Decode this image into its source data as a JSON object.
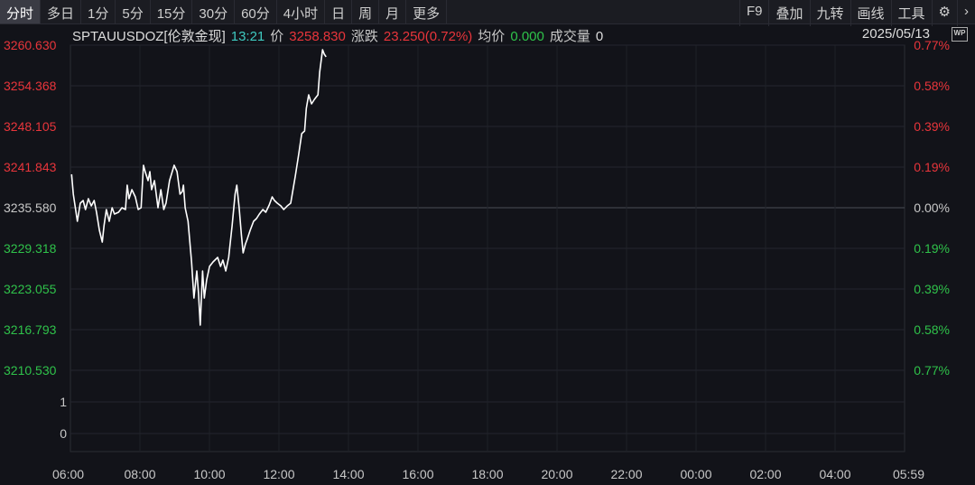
{
  "toolbar": {
    "tabs": [
      "分时",
      "多日",
      "1分",
      "5分",
      "15分",
      "30分",
      "60分",
      "4小时",
      "日",
      "周",
      "月",
      "更多"
    ],
    "active": 0,
    "right": [
      "F9",
      "叠加",
      "九转",
      "画线",
      "工具"
    ],
    "settings_icon": "gear-icon",
    "more_icon": "chevron-right-icon"
  },
  "info": {
    "symbol": "SPTAUUSDOZ[伦敦金现]",
    "time": "13:21",
    "price_label": "价",
    "price": "3258.830",
    "change_label": "涨跌",
    "change": "23.250(0.72%)",
    "avg_label": "均价",
    "avg": "0.000",
    "volume_label": "成交量",
    "volume": "0",
    "date": "2025/05/13",
    "wp_label": "WP"
  },
  "colors": {
    "up": "#e8353b",
    "down": "#2fc24a",
    "time": "#3fc9c0",
    "line": "#ffffff"
  },
  "chart_data": {
    "type": "line",
    "price_ticks": [
      "3260.630",
      "3254.368",
      "3248.105",
      "3241.843",
      "3235.580",
      "3229.318",
      "3223.055",
      "3216.793",
      "3210.530"
    ],
    "pct_ticks": [
      "0.77%",
      "0.58%",
      "0.39%",
      "0.19%",
      "0.00%",
      "0.19%",
      "0.39%",
      "0.58%",
      "0.77%"
    ],
    "volume_ticks": [
      "1",
      "0"
    ],
    "x_ticks": [
      "06:00",
      "08:00",
      "10:00",
      "12:00",
      "14:00",
      "16:00",
      "18:00",
      "20:00",
      "22:00",
      "00:00",
      "02:00",
      "04:00",
      "05:59"
    ],
    "ylim": [
      3210.53,
      3260.63
    ],
    "prev_close": 3235.58,
    "series": [
      [
        "06:02",
        3240.73
      ],
      [
        "06:05",
        3237.67
      ],
      [
        "06:12",
        3233.49
      ],
      [
        "06:17",
        3236.28
      ],
      [
        "06:22",
        3236.69
      ],
      [
        "06:26",
        3235.3
      ],
      [
        "06:31",
        3236.97
      ],
      [
        "06:36",
        3235.86
      ],
      [
        "06:41",
        3236.69
      ],
      [
        "06:45",
        3234.88
      ],
      [
        "06:50",
        3232.1
      ],
      [
        "06:55",
        3230.29
      ],
      [
        "06:58",
        3232.8
      ],
      [
        "07:02",
        3235.3
      ],
      [
        "07:07",
        3233.49
      ],
      [
        "07:12",
        3235.58
      ],
      [
        "07:16",
        3234.61
      ],
      [
        "07:23",
        3234.88
      ],
      [
        "07:29",
        3235.58
      ],
      [
        "07:35",
        3235.3
      ],
      [
        "07:38",
        3239.06
      ],
      [
        "07:41",
        3236.97
      ],
      [
        "07:46",
        3238.36
      ],
      [
        "07:52",
        3237.25
      ],
      [
        "07:57",
        3235.3
      ],
      [
        "08:02",
        3235.58
      ],
      [
        "08:06",
        3242.12
      ],
      [
        "08:09",
        3241.15
      ],
      [
        "08:14",
        3239.75
      ],
      [
        "08:17",
        3241.15
      ],
      [
        "08:20",
        3238.36
      ],
      [
        "08:25",
        3239.75
      ],
      [
        "08:31",
        3235.58
      ],
      [
        "08:36",
        3238.36
      ],
      [
        "08:41",
        3235.3
      ],
      [
        "08:45",
        3236.28
      ],
      [
        "08:51",
        3239.75
      ],
      [
        "08:59",
        3242.12
      ],
      [
        "09:04",
        3241.15
      ],
      [
        "09:09",
        3237.67
      ],
      [
        "09:13",
        3238.08
      ],
      [
        "09:15",
        3239.06
      ],
      [
        "09:18",
        3235.58
      ],
      [
        "09:23",
        3233.49
      ],
      [
        "09:29",
        3227.23
      ],
      [
        "09:33",
        3221.66
      ],
      [
        "09:38",
        3225.84
      ],
      [
        "09:41",
        3222.36
      ],
      [
        "09:44",
        3217.49
      ],
      [
        "09:48",
        3225.84
      ],
      [
        "09:51",
        3221.66
      ],
      [
        "09:55",
        3224.45
      ],
      [
        "10:00",
        3226.53
      ],
      [
        "10:06",
        3227.23
      ],
      [
        "10:14",
        3227.93
      ],
      [
        "10:19",
        3226.53
      ],
      [
        "10:23",
        3227.51
      ],
      [
        "10:28",
        3225.84
      ],
      [
        "10:33",
        3227.93
      ],
      [
        "10:39",
        3232.8
      ],
      [
        "10:44",
        3237.67
      ],
      [
        "10:47",
        3239.06
      ],
      [
        "10:51",
        3235.58
      ],
      [
        "10:55",
        3231.4
      ],
      [
        "10:58",
        3228.62
      ],
      [
        "11:02",
        3230.01
      ],
      [
        "11:05",
        3230.71
      ],
      [
        "11:10",
        3232.1
      ],
      [
        "11:16",
        3233.49
      ],
      [
        "11:21",
        3233.91
      ],
      [
        "11:26",
        3234.61
      ],
      [
        "11:32",
        3235.3
      ],
      [
        "11:37",
        3234.88
      ],
      [
        "11:43",
        3236.0
      ],
      [
        "11:48",
        3237.25
      ],
      [
        "11:52",
        3236.69
      ],
      [
        "11:57",
        3236.28
      ],
      [
        "12:03",
        3235.86
      ],
      [
        "12:08",
        3235.3
      ],
      [
        "12:14",
        3235.86
      ],
      [
        "12:20",
        3236.28
      ],
      [
        "12:28",
        3240.45
      ],
      [
        "12:34",
        3243.93
      ],
      [
        "12:39",
        3246.99
      ],
      [
        "12:44",
        3247.41
      ],
      [
        "12:47",
        3250.89
      ],
      [
        "12:51",
        3252.98
      ],
      [
        "12:56",
        3251.58
      ],
      [
        "13:01",
        3252.28
      ],
      [
        "13:07",
        3252.98
      ],
      [
        "13:10",
        3256.45
      ],
      [
        "13:15",
        3259.93
      ],
      [
        "13:18",
        3259.24
      ],
      [
        "13:21",
        3258.83
      ]
    ]
  }
}
